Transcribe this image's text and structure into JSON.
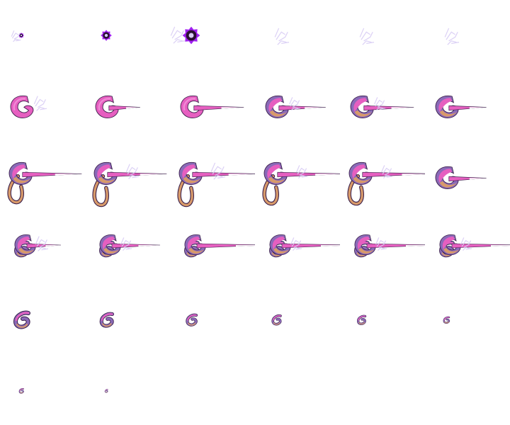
{
  "sprite_sheet": {
    "columns": 6,
    "rows": 6,
    "frame_count": 32,
    "colors": {
      "background": "#ffffff",
      "body_pink": "#e65fc0",
      "body_pink_light": "#f08ad6",
      "body_tan": "#d89a6a",
      "body_purple": "#8a6ab8",
      "outline": "#3a1f4a",
      "spark_core": "#2a1030",
      "spark_glow": "#a020f0",
      "spark_light": "#d8ccf4",
      "beam_white": "#ffffff"
    },
    "frames": [
      {
        "kind": "spark",
        "scale": 0.3,
        "smoke": 0.6
      },
      {
        "kind": "spark",
        "scale": 0.6,
        "smoke": 0
      },
      {
        "kind": "spark",
        "scale": 0.95,
        "smoke": 0.9
      },
      {
        "kind": "smoke",
        "scale": 0.9
      },
      {
        "kind": "smoke",
        "scale": 0.9
      },
      {
        "kind": "smoke",
        "scale": 0.9
      },
      {
        "kind": "hook",
        "variant": "solid",
        "beam": 0,
        "smoke": 0.8
      },
      {
        "kind": "hook",
        "variant": "solid",
        "beam": 0.25,
        "smoke": 0
      },
      {
        "kind": "hook",
        "variant": "solid",
        "beam": 0.55,
        "smoke": 0
      },
      {
        "kind": "hook",
        "variant": "striped",
        "beam": 0.5,
        "smoke": 0.7
      },
      {
        "kind": "hook",
        "variant": "striped",
        "beam": 0.55,
        "smoke": 0.7
      },
      {
        "kind": "hook",
        "variant": "striped",
        "beam": 0.35,
        "smoke": 0
      },
      {
        "kind": "tentacle",
        "beam": 0.7,
        "tail": 0.8,
        "smoke": 0
      },
      {
        "kind": "tentacle",
        "beam": 0.7,
        "tail": 1.0,
        "smoke": 0.8
      },
      {
        "kind": "tentacle",
        "beam": 0.8,
        "tail": 1.0,
        "smoke": 0.9
      },
      {
        "kind": "tentacle",
        "beam": 0.85,
        "tail": 0.9,
        "smoke": 0.7
      },
      {
        "kind": "tentacle",
        "beam": 0.9,
        "tail": 0.9,
        "smoke": 0.7
      },
      {
        "kind": "hook",
        "variant": "striped",
        "beam": 0.35,
        "smoke": 0
      },
      {
        "kind": "swirl",
        "beam": 0.35,
        "smoke": 0.8
      },
      {
        "kind": "swirl",
        "beam": 0.6,
        "smoke": 0.7
      },
      {
        "kind": "swirl",
        "beam": 1.0,
        "smoke": 0
      },
      {
        "kind": "swirl",
        "beam": 1.0,
        "smoke": 0.7
      },
      {
        "kind": "swirl",
        "beam": 1.0,
        "smoke": 0.7
      },
      {
        "kind": "swirl",
        "beam": 1.0,
        "smoke": 0.7
      },
      {
        "kind": "curl",
        "size": 1.0
      },
      {
        "kind": "curl",
        "size": 0.85
      },
      {
        "kind": "curl",
        "size": 0.7
      },
      {
        "kind": "curl",
        "size": 0.6
      },
      {
        "kind": "curl",
        "size": 0.55
      },
      {
        "kind": "curl",
        "size": 0.4
      },
      {
        "kind": "curl",
        "size": 0.3
      },
      {
        "kind": "curl",
        "size": 0.2
      }
    ]
  }
}
